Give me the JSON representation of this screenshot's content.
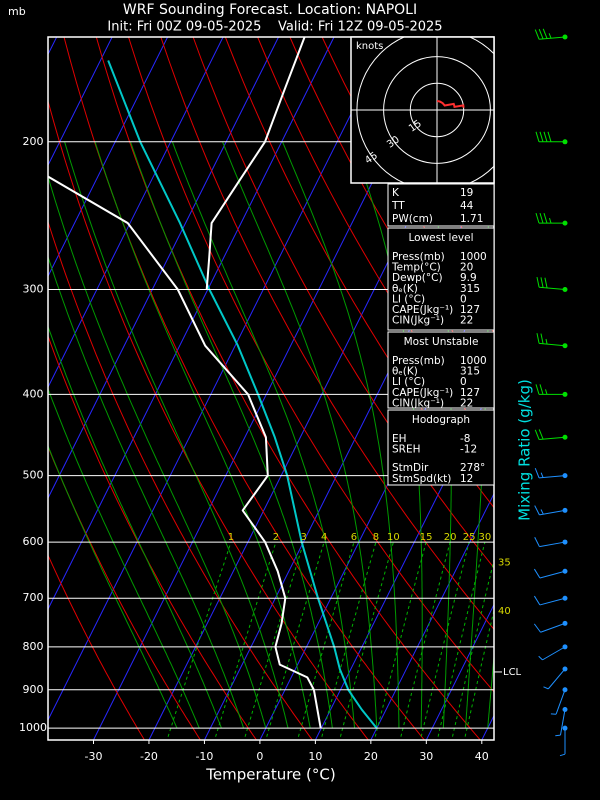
{
  "chart_data": {
    "type": "skew-t",
    "title": "WRF Sounding Forecast. Location: NAPOLI",
    "subtitle": "Init: Fri 00Z 09-05-2025    Valid: Fri 12Z 09-05-2025",
    "y_unit": "mb",
    "xlabel": "Temperature (°C)",
    "y2label": "Mixing Ratio (g/kg)",
    "xlim": [
      -38.2,
      42.2
    ],
    "xticks": [
      -30,
      -20,
      -10,
      0,
      10,
      20,
      30,
      40
    ],
    "ylim": [
      1033,
      150
    ],
    "yticks": [
      200,
      300,
      400,
      500,
      600,
      700,
      800,
      900,
      1000
    ],
    "grid": true,
    "profiles": [
      {
        "color": "#00c8c8",
        "pressure": [
          1000,
          950,
          900,
          850,
          800,
          700,
          600,
          500,
          450,
          400,
          350,
          300,
          250,
          200,
          160
        ],
        "temperature": [
          20,
          15.6,
          11.4,
          8.0,
          5.0,
          -2.3,
          -10.3,
          -18.9,
          -24.6,
          -31.5,
          -39.5,
          -49.7,
          -61.0,
          -75.5,
          -88.6
        ]
      },
      {
        "color": "#ffffff",
        "pressure": [
          1000,
          900,
          870,
          840,
          800,
          750,
          700,
          650,
          600,
          550,
          500,
          450,
          400,
          350,
          300,
          250,
          220
        ],
        "temperature": [
          9.9,
          5.2,
          2.9,
          -3.2,
          -5.6,
          -6.6,
          -8.2,
          -12.0,
          -16.9,
          -23.8,
          -22.4,
          -26.2,
          -33.3,
          -45.4,
          -55.4,
          -70.4,
          -89.0
        ]
      },
      {
        "color": "#ffffff",
        "pressure": [
          300,
          275,
          250,
          222,
          200,
          175,
          150
        ],
        "temperature": [
          -50.2,
          -52.6,
          -55.3,
          -54.1,
          -53.0,
          -54.1,
          -55.3
        ]
      }
    ],
    "mixing_ratio": {
      "color": "#00b400",
      "label_color": "#d8d800",
      "values": [
        1,
        2,
        3,
        4,
        6,
        8,
        10,
        15,
        20,
        25,
        30,
        35,
        40
      ]
    },
    "lcl": {
      "pressure": 857,
      "label": "LCL"
    },
    "winds": [
      {
        "color": "#00e000",
        "pressure": [
          150,
          200,
          250,
          300,
          350,
          400,
          450
        ],
        "speed": [
          35,
          40,
          35,
          30,
          25,
          25,
          20
        ],
        "direction": [
          265,
          270,
          270,
          275,
          275,
          270,
          265
        ]
      },
      {
        "color": "#1e90ff",
        "pressure": [
          500,
          550,
          600,
          650,
          700,
          750,
          800,
          850,
          900,
          950,
          1000
        ],
        "speed": [
          15,
          15,
          10,
          10,
          10,
          10,
          5,
          5,
          5,
          5,
          5
        ],
        "direction": [
          265,
          260,
          260,
          255,
          255,
          250,
          240,
          220,
          200,
          190,
          180
        ]
      }
    ],
    "hodograph": {
      "title": "knots",
      "rings": [
        15,
        30,
        45
      ],
      "color": "#ff3030"
    },
    "indices": [
      {
        "label": "K",
        "value": 19
      },
      {
        "label": "TT",
        "value": 44
      },
      {
        "label": "PW(cm)",
        "value": 1.71
      }
    ],
    "panels": [
      {
        "title": "Lowest level",
        "rows": [
          {
            "label": "Press(mb)",
            "value": 1000
          },
          {
            "label": "Temp(°C)",
            "value": 20
          },
          {
            "label": "Dewp(°C)",
            "value": 9.9
          },
          {
            "label": "θₑ(K)",
            "value": 315
          },
          {
            "label": "LI (°C)",
            "value": 0
          },
          {
            "label": "CAPE(Jkg⁻¹)",
            "value": 127
          },
          {
            "label": "CIN(Jkg⁻¹)",
            "value": 22
          }
        ]
      },
      {
        "title": "Most Unstable",
        "rows": [
          {
            "label": "Press(mb)",
            "value": 1000
          },
          {
            "label": "θₑ(K)",
            "value": 315
          },
          {
            "label": "LI (°C)",
            "value": 0
          },
          {
            "label": "CAPE(Jkg⁻¹)",
            "value": 127
          },
          {
            "label": "CIN(Jkg⁻¹)",
            "value": 22
          }
        ]
      },
      {
        "title": "Hodograph",
        "rows": [
          {
            "label": "EH",
            "value": -8
          },
          {
            "label": "SREH",
            "value": -12
          },
          {
            "label": "StmDir",
            "value": "278°"
          },
          {
            "label": "StmSpd(kt)",
            "value": 12
          }
        ]
      }
    ]
  }
}
